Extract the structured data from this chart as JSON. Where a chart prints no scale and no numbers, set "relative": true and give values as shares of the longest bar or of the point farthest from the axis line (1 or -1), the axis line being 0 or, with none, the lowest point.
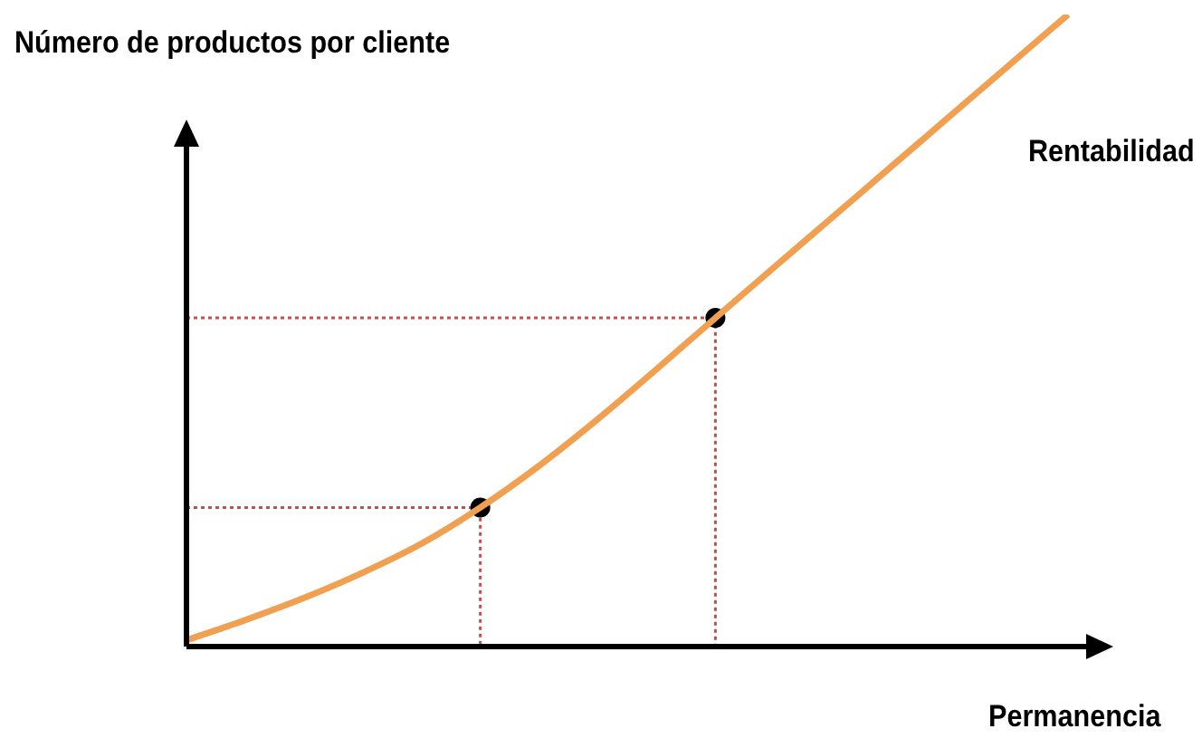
{
  "chart_data": {
    "type": "line",
    "relative": true,
    "ylabel": "Número de productos por cliente",
    "xlabel": "Permanencia",
    "categories": [
      null,
      null,
      null,
      null,
      null,
      null,
      null,
      null,
      null,
      null,
      null,
      null,
      null,
      null,
      null,
      null
    ],
    "legend": false,
    "marker": "none",
    "series": [
      {
        "name": "Rentabilidad",
        "color": "#f0a050",
        "values": [
          0.01,
          0.042,
          0.077,
          0.117,
          0.163,
          0.22,
          0.286,
          0.36,
          0.439,
          0.52,
          0.6,
          0.68,
          0.76,
          0.84,
          0.92,
          1.0
        ]
      }
    ],
    "ref_lines": [
      {
        "axis": "y",
        "value": 0.22,
        "color": "#c0504d",
        "line_style": "dotted"
      },
      {
        "axis": "y",
        "value": 0.52,
        "color": "#c0504d",
        "line_style": "dotted"
      }
    ]
  }
}
